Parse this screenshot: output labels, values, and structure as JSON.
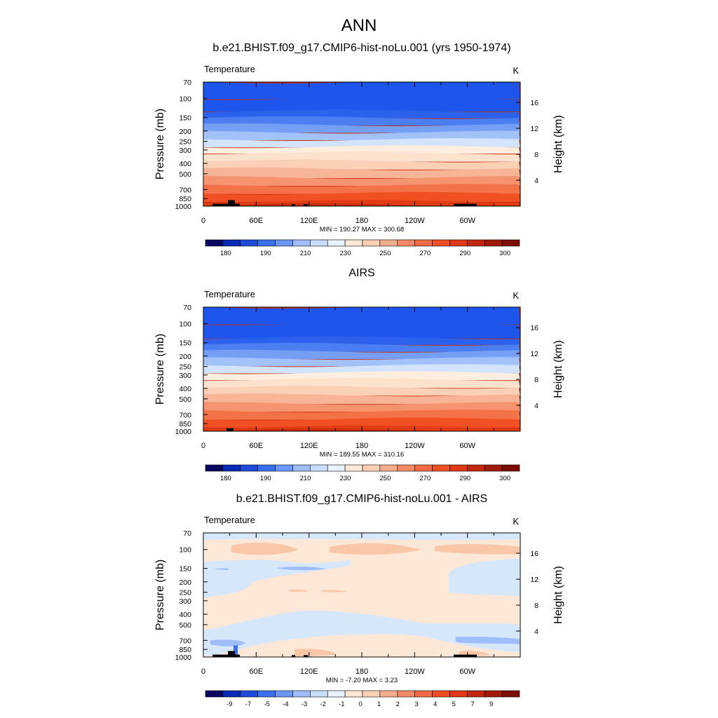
{
  "main_title": "ANN",
  "chart_data": [
    {
      "type": "contour",
      "title": "b.e21.BHIST.f09_g17.CMIP6-hist-noLu.001 (yrs 1950-1974)",
      "variable_label": "Temperature",
      "units": "K",
      "ylabel_left": "Pressure (mb)",
      "ylabel_right": "Height (km)",
      "stats": "MIN = 190.27  MAX = 300.68",
      "x_ticks": [
        "0",
        "60E",
        "120E",
        "180",
        "120W",
        "60W"
      ],
      "pressure_ticks": [
        "70",
        "100",
        "150",
        "200",
        "250",
        "300",
        "400",
        "500",
        "700",
        "850",
        "1000"
      ],
      "height_ticks": [
        "4",
        "8",
        "12",
        "16"
      ],
      "colorbar_labels": [
        "180",
        "190",
        "210",
        "230",
        "250",
        "270",
        "290",
        "300"
      ],
      "colorbar_colors": [
        "#08065e",
        "#0a2bb5",
        "#1e4bd9",
        "#3a6ff0",
        "#6a96f5",
        "#9ebdfa",
        "#c9defc",
        "#eaf2ff",
        "#fde7d6",
        "#fbcfb3",
        "#f8ae8c",
        "#f58967",
        "#f26a45",
        "#ee4e24",
        "#e03716",
        "#c22810",
        "#a01b09",
        "#7c0e05"
      ],
      "layers": [
        {
          "p": 70,
          "color": "#1e55ec"
        },
        {
          "p": 100,
          "color": "#1e55ec"
        },
        {
          "p": 130,
          "color": "#2a62ee"
        },
        {
          "p": 150,
          "color": "#4b7ff1"
        },
        {
          "p": 175,
          "color": "#759ff5"
        },
        {
          "p": 205,
          "color": "#a2c1f8"
        },
        {
          "p": 240,
          "color": "#d2e3fb"
        },
        {
          "p": 280,
          "color": "#fdeee0"
        },
        {
          "p": 320,
          "color": "#fce2cd"
        },
        {
          "p": 380,
          "color": "#fbd0b7"
        },
        {
          "p": 450,
          "color": "#f8b496"
        },
        {
          "p": 540,
          "color": "#f5946f"
        },
        {
          "p": 640,
          "color": "#f37248"
        },
        {
          "p": 760,
          "color": "#f15022"
        },
        {
          "p": 900,
          "color": "#e23c14"
        },
        {
          "p": 970,
          "color": "#c92c0e"
        },
        {
          "p": 1000,
          "color": "#c92c0e"
        }
      ]
    },
    {
      "type": "contour",
      "title": "AIRS",
      "variable_label": "Temperature",
      "units": "K",
      "ylabel_left": "Pressure (mb)",
      "ylabel_right": "Height (km)",
      "stats": "MIN = 189.55  MAX = 310.16",
      "x_ticks": [
        "0",
        "60E",
        "120E",
        "180",
        "120W",
        "60W"
      ],
      "pressure_ticks": [
        "70",
        "100",
        "150",
        "200",
        "250",
        "300",
        "400",
        "500",
        "700",
        "850",
        "1000"
      ],
      "height_ticks": [
        "4",
        "8",
        "12",
        "16"
      ],
      "colorbar_labels": [
        "180",
        "190",
        "210",
        "230",
        "250",
        "270",
        "290",
        "300"
      ],
      "colorbar_colors": [
        "#08065e",
        "#0a2bb5",
        "#1e4bd9",
        "#3a6ff0",
        "#6a96f5",
        "#9ebdfa",
        "#c9defc",
        "#eaf2ff",
        "#fde7d6",
        "#fbcfb3",
        "#f8ae8c",
        "#f58967",
        "#f26a45",
        "#ee4e24",
        "#e03716",
        "#c22810",
        "#a01b09",
        "#7c0e05"
      ],
      "layers": [
        {
          "p": 70,
          "color": "#1e55ec"
        },
        {
          "p": 100,
          "color": "#1e55ec"
        },
        {
          "p": 135,
          "color": "#2a62ee"
        },
        {
          "p": 155,
          "color": "#4b7ff1"
        },
        {
          "p": 180,
          "color": "#759ff5"
        },
        {
          "p": 210,
          "color": "#a2c1f8"
        },
        {
          "p": 245,
          "color": "#d2e3fb"
        },
        {
          "p": 285,
          "color": "#fdeee0"
        },
        {
          "p": 330,
          "color": "#fce2cd"
        },
        {
          "p": 390,
          "color": "#fbd0b7"
        },
        {
          "p": 460,
          "color": "#f8b496"
        },
        {
          "p": 550,
          "color": "#f5946f"
        },
        {
          "p": 650,
          "color": "#f37248"
        },
        {
          "p": 770,
          "color": "#f15022"
        },
        {
          "p": 910,
          "color": "#e23c14"
        },
        {
          "p": 975,
          "color": "#c92c0e"
        },
        {
          "p": 1000,
          "color": "#c92c0e"
        }
      ]
    },
    {
      "type": "contour",
      "title": "b.e21.BHIST.f09_g17.CMIP6-hist-noLu.001 - AIRS",
      "variable_label": "Temperature",
      "units": "K",
      "ylabel_left": "Pressure (mb)",
      "ylabel_right": "Height (km)",
      "stats": "MIN = -7.20  MAX =   3.23",
      "x_ticks": [
        "0",
        "60E",
        "120E",
        "180",
        "120W",
        "60W"
      ],
      "pressure_ticks": [
        "70",
        "100",
        "150",
        "200",
        "250",
        "300",
        "400",
        "500",
        "700",
        "850",
        "1000"
      ],
      "height_ticks": [
        "4",
        "8",
        "12",
        "16"
      ],
      "colorbar_labels": [
        "-9",
        "-7",
        "-5",
        "-4",
        "-3",
        "-2",
        "-1",
        "0",
        "1",
        "2",
        "3",
        "4",
        "5",
        "7",
        "9"
      ],
      "colorbar_colors": [
        "#08065e",
        "#0a2bb5",
        "#1e4bd9",
        "#3a6ff0",
        "#6a96f5",
        "#9ebdfa",
        "#c9defc",
        "#eaf2ff",
        "#fde7d6",
        "#fbcfb3",
        "#f8ae8c",
        "#f58967",
        "#f26a45",
        "#ee4e24",
        "#e03716",
        "#c22810",
        "#a01b09",
        "#7c0e05"
      ],
      "background_color": "#fde7d6",
      "layers": []
    }
  ]
}
